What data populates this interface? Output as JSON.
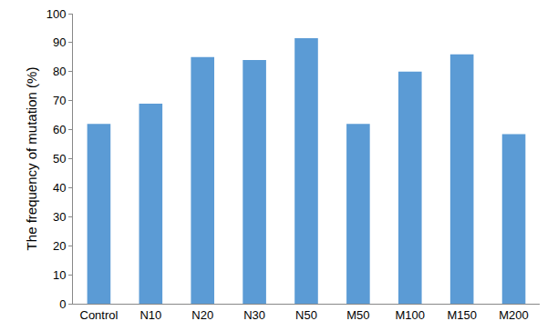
{
  "chart_data": {
    "type": "bar",
    "y_label": "The frequency of mutation (%)",
    "categories": [
      "Control",
      "N10",
      "N20",
      "N30",
      "N50",
      "M50",
      "M100",
      "M150",
      "M200"
    ],
    "values": [
      62,
      69,
      85,
      84,
      91.5,
      62,
      80,
      86,
      58.5
    ],
    "color": "#5b9bd5",
    "ylim": [
      0,
      100
    ],
    "yticks": [
      0,
      10,
      20,
      30,
      40,
      50,
      60,
      70,
      80,
      90,
      100
    ],
    "grid": false
  }
}
